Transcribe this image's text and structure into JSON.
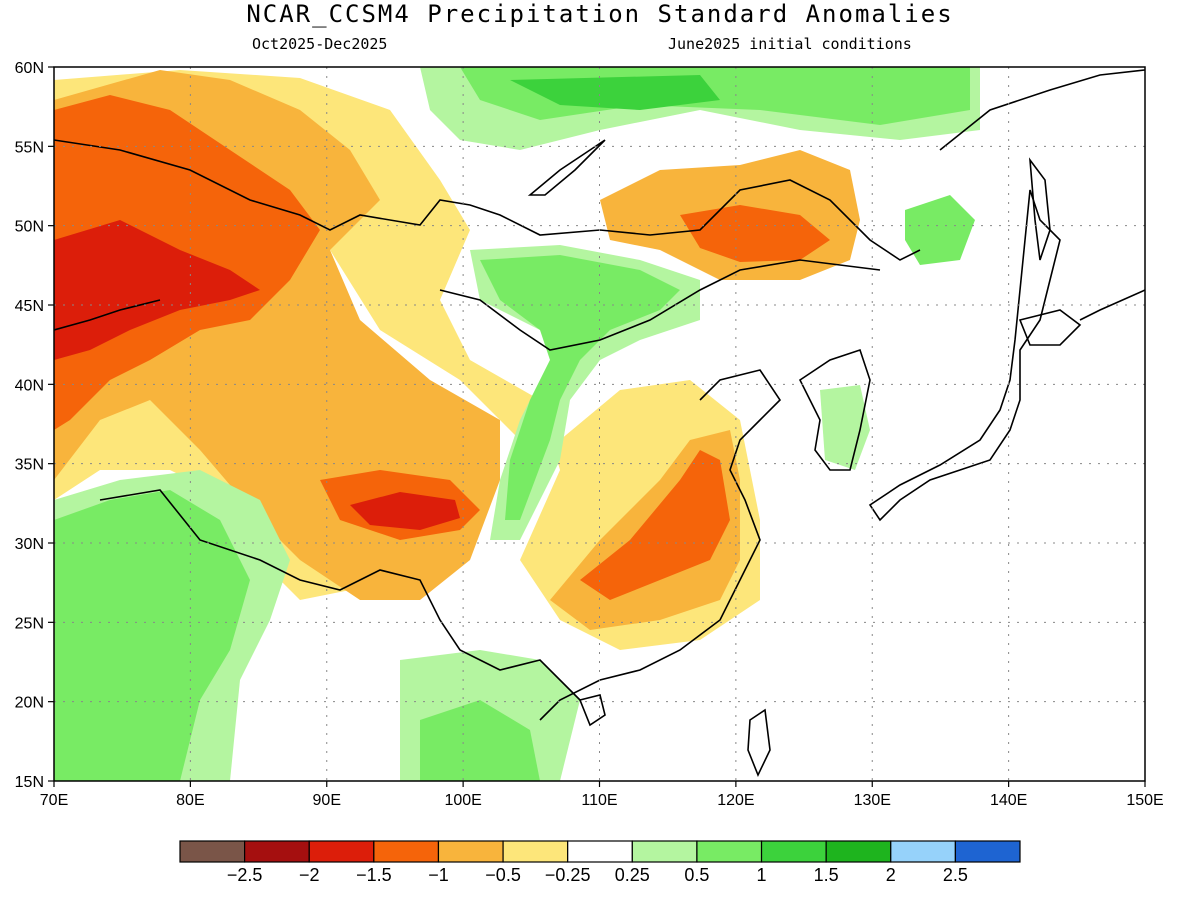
{
  "title": "NCAR_CCSM4 Precipitation Standard Anomalies",
  "subtitle_left": "Oct2025-Dec2025",
  "subtitle_right": "June2025 initial conditions",
  "lon_labels": [
    "70E",
    "80E",
    "90E",
    "100E",
    "110E",
    "120E",
    "130E",
    "140E",
    "150E"
  ],
  "lat_labels": [
    "60N",
    "55N",
    "50N",
    "45N",
    "40N",
    "35N",
    "30N",
    "25N",
    "20N",
    "15N"
  ],
  "colorbar": {
    "colors": [
      "#7a5548",
      "#a50f0f",
      "#dc1e0a",
      "#f5640a",
      "#f8b43c",
      "#fde67a",
      "#ffffff",
      "#b4f5a0",
      "#78eb64",
      "#3cd23c",
      "#1eb41e",
      "#96d2fa",
      "#1e64d2"
    ],
    "labels": [
      "−2.5",
      "−2",
      "−1.5",
      "−1",
      "−0.5",
      "−0.25",
      "0.25",
      "0.5",
      "1",
      "1.5",
      "2",
      "2.5"
    ]
  },
  "palette": {
    "dark_red": "#dc1e0a",
    "orange": "#f5640a",
    "light_orange": "#f8b43c",
    "yellow": "#fde67a",
    "light_green": "#b4f5a0",
    "green": "#78eb64",
    "dark_green": "#3cd23c"
  }
}
